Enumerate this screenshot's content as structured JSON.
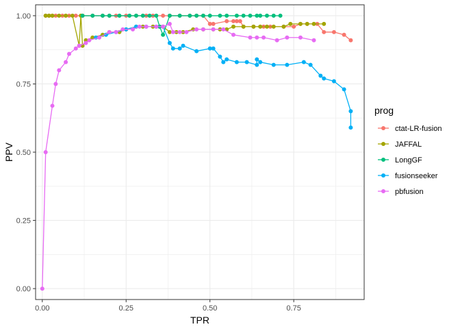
{
  "chart_data": {
    "type": "line",
    "xlabel": "TPR",
    "ylabel": "PPV",
    "xlim": [
      -0.02,
      0.96
    ],
    "ylim": [
      -0.04,
      1.04
    ],
    "x_ticks": [
      0.0,
      0.25,
      0.5,
      0.75
    ],
    "x_tick_labels": [
      "0.00",
      "0.25",
      "0.50",
      "0.75"
    ],
    "y_ticks": [
      0.0,
      0.25,
      0.5,
      0.75,
      1.0
    ],
    "y_tick_labels": [
      "0.00",
      "0.25",
      "0.50",
      "0.75",
      "1.00"
    ],
    "grid": true,
    "legend": {
      "title": "prog",
      "position": "right"
    },
    "series": [
      {
        "name": "ctat-LR-fusion",
        "color": "#F8766D",
        "points": [
          [
            0.01,
            1.0
          ],
          [
            0.02,
            1.0
          ],
          [
            0.03,
            1.0
          ],
          [
            0.04,
            1.0
          ],
          [
            0.06,
            1.0
          ],
          [
            0.08,
            1.0
          ],
          [
            0.1,
            1.0
          ],
          [
            0.12,
            1.0
          ],
          [
            0.15,
            1.0
          ],
          [
            0.18,
            1.0
          ],
          [
            0.2,
            1.0
          ],
          [
            0.22,
            1.0
          ],
          [
            0.25,
            1.0
          ],
          [
            0.28,
            1.0
          ],
          [
            0.31,
            1.0
          ],
          [
            0.33,
            1.0
          ],
          [
            0.36,
            1.0
          ],
          [
            0.38,
            1.0
          ],
          [
            0.41,
            1.0
          ],
          [
            0.44,
            1.0
          ],
          [
            0.46,
            1.0
          ],
          [
            0.48,
            1.0
          ],
          [
            0.5,
            0.97
          ],
          [
            0.51,
            0.97
          ],
          [
            0.55,
            0.98
          ],
          [
            0.57,
            0.98
          ],
          [
            0.58,
            0.98
          ],
          [
            0.59,
            0.98
          ],
          [
            0.6,
            0.96
          ],
          [
            0.63,
            0.96
          ],
          [
            0.66,
            0.96
          ],
          [
            0.68,
            0.96
          ],
          [
            0.72,
            0.96
          ],
          [
            0.75,
            0.96
          ],
          [
            0.77,
            0.97
          ],
          [
            0.79,
            0.97
          ],
          [
            0.82,
            0.97
          ],
          [
            0.84,
            0.94
          ],
          [
            0.87,
            0.94
          ],
          [
            0.9,
            0.93
          ],
          [
            0.92,
            0.91
          ]
        ]
      },
      {
        "name": "JAFFAL",
        "color": "#A3A500",
        "points": [
          [
            0.01,
            1.0
          ],
          [
            0.02,
            1.0
          ],
          [
            0.03,
            1.0
          ],
          [
            0.05,
            1.0
          ],
          [
            0.07,
            1.0
          ],
          [
            0.09,
            1.0
          ],
          [
            0.11,
            0.89
          ],
          [
            0.115,
            1.0
          ],
          [
            0.12,
            0.89
          ],
          [
            0.13,
            0.91
          ],
          [
            0.15,
            0.92
          ],
          [
            0.18,
            0.93
          ],
          [
            0.2,
            0.94
          ],
          [
            0.23,
            0.94
          ],
          [
            0.25,
            0.95
          ],
          [
            0.28,
            0.96
          ],
          [
            0.3,
            0.96
          ],
          [
            0.33,
            0.96
          ],
          [
            0.35,
            0.96
          ],
          [
            0.36,
            0.96
          ],
          [
            0.38,
            0.94
          ],
          [
            0.4,
            0.94
          ],
          [
            0.42,
            0.94
          ],
          [
            0.45,
            0.95
          ],
          [
            0.48,
            0.95
          ],
          [
            0.51,
            0.95
          ],
          [
            0.53,
            0.95
          ],
          [
            0.55,
            0.95
          ],
          [
            0.57,
            0.96
          ],
          [
            0.6,
            0.96
          ],
          [
            0.63,
            0.96
          ],
          [
            0.65,
            0.96
          ],
          [
            0.67,
            0.96
          ],
          [
            0.69,
            0.96
          ],
          [
            0.72,
            0.96
          ],
          [
            0.74,
            0.97
          ],
          [
            0.77,
            0.97
          ],
          [
            0.79,
            0.97
          ],
          [
            0.81,
            0.97
          ],
          [
            0.84,
            0.97
          ]
        ]
      },
      {
        "name": "LongGF",
        "color": "#00BF7D",
        "points": [
          [
            0.12,
            1.0
          ],
          [
            0.15,
            1.0
          ],
          [
            0.18,
            1.0
          ],
          [
            0.2,
            1.0
          ],
          [
            0.23,
            1.0
          ],
          [
            0.26,
            1.0
          ],
          [
            0.28,
            1.0
          ],
          [
            0.3,
            1.0
          ],
          [
            0.32,
            1.0
          ],
          [
            0.34,
            1.0
          ],
          [
            0.35,
            0.96
          ],
          [
            0.36,
            0.93
          ],
          [
            0.38,
            1.0
          ],
          [
            0.41,
            1.0
          ],
          [
            0.44,
            1.0
          ],
          [
            0.46,
            1.0
          ],
          [
            0.48,
            1.0
          ],
          [
            0.5,
            1.0
          ],
          [
            0.53,
            1.0
          ],
          [
            0.55,
            1.0
          ],
          [
            0.58,
            1.0
          ],
          [
            0.6,
            1.0
          ],
          [
            0.62,
            1.0
          ],
          [
            0.64,
            1.0
          ],
          [
            0.65,
            1.0
          ],
          [
            0.67,
            1.0
          ],
          [
            0.69,
            1.0
          ],
          [
            0.71,
            1.0
          ]
        ]
      },
      {
        "name": "fusionseeker",
        "color": "#00B0F6",
        "points": [
          [
            0.16,
            0.92
          ],
          [
            0.19,
            0.93
          ],
          [
            0.22,
            0.94
          ],
          [
            0.25,
            0.95
          ],
          [
            0.28,
            0.96
          ],
          [
            0.31,
            0.96
          ],
          [
            0.34,
            0.96
          ],
          [
            0.36,
            0.96
          ],
          [
            0.38,
            0.9
          ],
          [
            0.39,
            0.88
          ],
          [
            0.41,
            0.88
          ],
          [
            0.42,
            0.89
          ],
          [
            0.46,
            0.87
          ],
          [
            0.5,
            0.88
          ],
          [
            0.51,
            0.88
          ],
          [
            0.53,
            0.85
          ],
          [
            0.54,
            0.83
          ],
          [
            0.55,
            0.84
          ],
          [
            0.58,
            0.83
          ],
          [
            0.61,
            0.83
          ],
          [
            0.64,
            0.82
          ],
          [
            0.64,
            0.84
          ],
          [
            0.65,
            0.83
          ],
          [
            0.69,
            0.82
          ],
          [
            0.73,
            0.82
          ],
          [
            0.78,
            0.83
          ],
          [
            0.8,
            0.82
          ],
          [
            0.83,
            0.78
          ],
          [
            0.84,
            0.77
          ],
          [
            0.87,
            0.76
          ],
          [
            0.9,
            0.73
          ],
          [
            0.92,
            0.65
          ],
          [
            0.92,
            0.59
          ]
        ]
      },
      {
        "name": "pbfusion",
        "color": "#E76BF3",
        "points": [
          [
            0.0,
            0.0
          ],
          [
            0.01,
            0.5
          ],
          [
            0.03,
            0.67
          ],
          [
            0.04,
            0.75
          ],
          [
            0.05,
            0.8
          ],
          [
            0.07,
            0.83
          ],
          [
            0.08,
            0.86
          ],
          [
            0.1,
            0.88
          ],
          [
            0.11,
            0.89
          ],
          [
            0.13,
            0.9
          ],
          [
            0.14,
            0.91
          ],
          [
            0.17,
            0.92
          ],
          [
            0.2,
            0.94
          ],
          [
            0.22,
            0.94
          ],
          [
            0.24,
            0.95
          ],
          [
            0.27,
            0.95
          ],
          [
            0.29,
            0.96
          ],
          [
            0.31,
            0.96
          ],
          [
            0.34,
            0.96
          ],
          [
            0.36,
            0.96
          ],
          [
            0.38,
            0.97
          ],
          [
            0.39,
            0.94
          ],
          [
            0.41,
            0.94
          ],
          [
            0.43,
            0.94
          ],
          [
            0.46,
            0.95
          ],
          [
            0.48,
            0.95
          ],
          [
            0.51,
            0.95
          ],
          [
            0.54,
            0.95
          ],
          [
            0.57,
            0.93
          ],
          [
            0.62,
            0.92
          ],
          [
            0.64,
            0.92
          ],
          [
            0.66,
            0.92
          ],
          [
            0.7,
            0.91
          ],
          [
            0.73,
            0.92
          ],
          [
            0.77,
            0.92
          ],
          [
            0.81,
            0.91
          ]
        ]
      }
    ]
  }
}
